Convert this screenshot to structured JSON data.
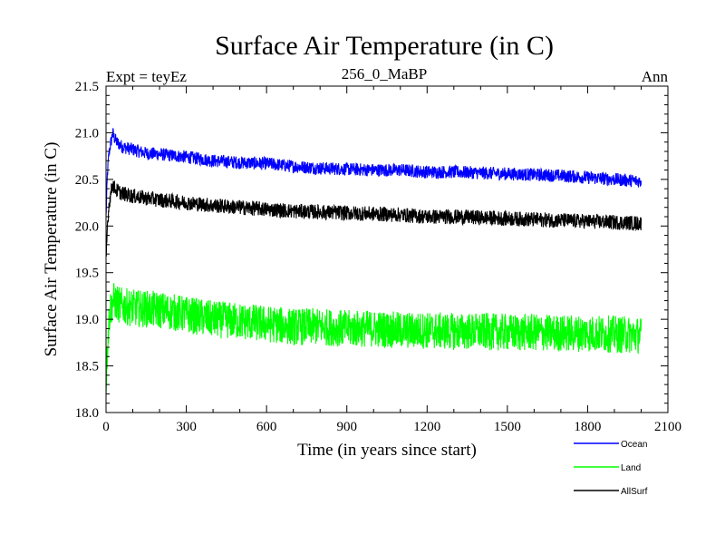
{
  "chart_data": {
    "type": "line",
    "title": "Surface Air Temperature (in C)",
    "subtitle_left": "Expt = teyEz",
    "subtitle_center": "256_0_MaBP",
    "subtitle_right": "Ann",
    "xlabel": "Time (in years since start)",
    "ylabel": "Surface Air Temperature (in C)",
    "xlim": [
      0,
      2100
    ],
    "ylim": [
      18.0,
      21.5
    ],
    "xticks": [
      "0",
      "300",
      "600",
      "900",
      "1200",
      "1500",
      "1800",
      "2100"
    ],
    "yticks": [
      "18.0",
      "18.5",
      "19.0",
      "19.5",
      "20.0",
      "20.5",
      "21.0",
      "21.5"
    ],
    "legend_position": "bottom-right-outside",
    "series": [
      {
        "name": "Ocean",
        "color": "#0000ff",
        "x": [
          0,
          5,
          10,
          15,
          20,
          25,
          30,
          40,
          60,
          100,
          150,
          200,
          300,
          400,
          500,
          600,
          700,
          800,
          900,
          1000,
          1100,
          1200,
          1300,
          1400,
          1500,
          1600,
          1700,
          1800,
          1900,
          2000
        ],
        "values": [
          20.1,
          20.55,
          20.75,
          20.85,
          20.92,
          21.0,
          20.95,
          20.9,
          20.85,
          20.82,
          20.78,
          20.77,
          20.74,
          20.7,
          20.68,
          20.67,
          20.64,
          20.62,
          20.61,
          20.6,
          20.6,
          20.58,
          20.58,
          20.57,
          20.56,
          20.55,
          20.54,
          20.52,
          20.5,
          20.48
        ]
      },
      {
        "name": "Land",
        "color": "#00ff00",
        "x": [
          0,
          5,
          10,
          15,
          20,
          30,
          50,
          100,
          200,
          300,
          400,
          500,
          600,
          700,
          800,
          900,
          1000,
          1100,
          1200,
          1300,
          1400,
          1500,
          1600,
          1700,
          1800,
          1900,
          2000
        ],
        "values": [
          18.3,
          18.7,
          18.95,
          19.1,
          19.15,
          19.2,
          19.15,
          19.12,
          19.1,
          19.05,
          19.0,
          18.98,
          18.95,
          18.92,
          18.92,
          18.9,
          18.9,
          18.88,
          18.88,
          18.87,
          18.87,
          18.86,
          18.86,
          18.85,
          18.85,
          18.84,
          18.83
        ]
      },
      {
        "name": "AllSurf",
        "color": "#000000",
        "x": [
          0,
          5,
          10,
          15,
          20,
          25,
          30,
          40,
          60,
          100,
          150,
          200,
          300,
          400,
          500,
          600,
          700,
          800,
          900,
          1000,
          1100,
          1200,
          1300,
          1400,
          1500,
          1600,
          1700,
          1800,
          1900,
          2000
        ],
        "values": [
          19.6,
          20.0,
          20.2,
          20.3,
          20.38,
          20.45,
          20.42,
          20.38,
          20.35,
          20.32,
          20.3,
          20.28,
          20.25,
          20.22,
          20.2,
          20.18,
          20.16,
          20.15,
          20.14,
          20.13,
          20.12,
          20.1,
          20.1,
          20.09,
          20.08,
          20.07,
          20.06,
          20.05,
          20.04,
          20.03
        ]
      }
    ]
  }
}
